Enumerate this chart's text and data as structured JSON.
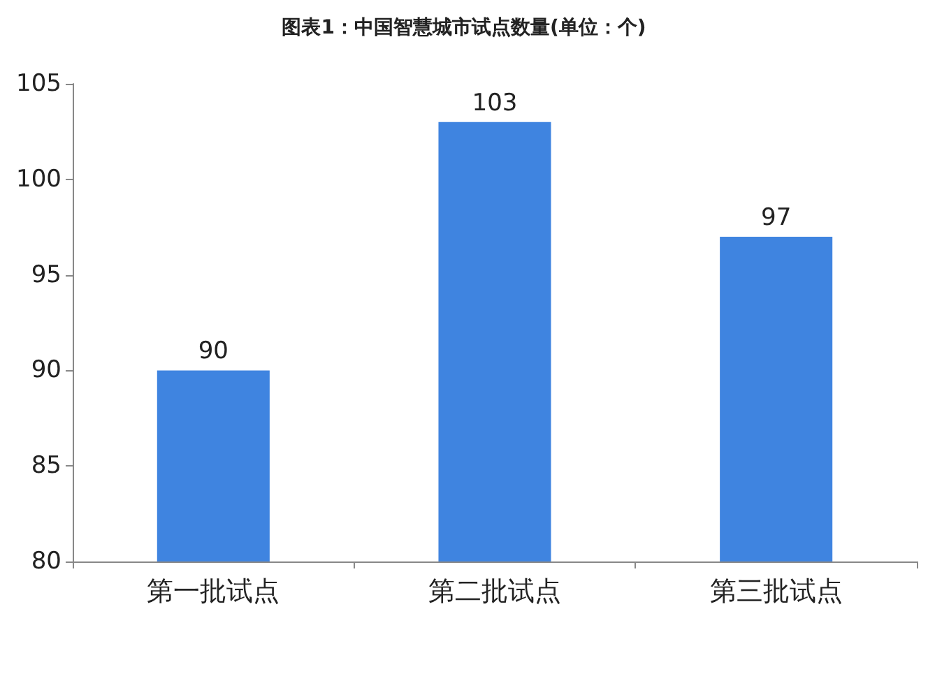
{
  "chart_data": {
    "type": "bar",
    "title": "图表1：中国智慧城市试点数量(单位：个)",
    "categories": [
      "第一批试点",
      "第二批试点",
      "第三批试点"
    ],
    "values": [
      90,
      103,
      97
    ],
    "color": "#3f84e0",
    "ylim": [
      80,
      105
    ],
    "yticks": [
      80,
      85,
      90,
      95,
      100,
      105
    ],
    "grid": false,
    "data_labels": true
  }
}
